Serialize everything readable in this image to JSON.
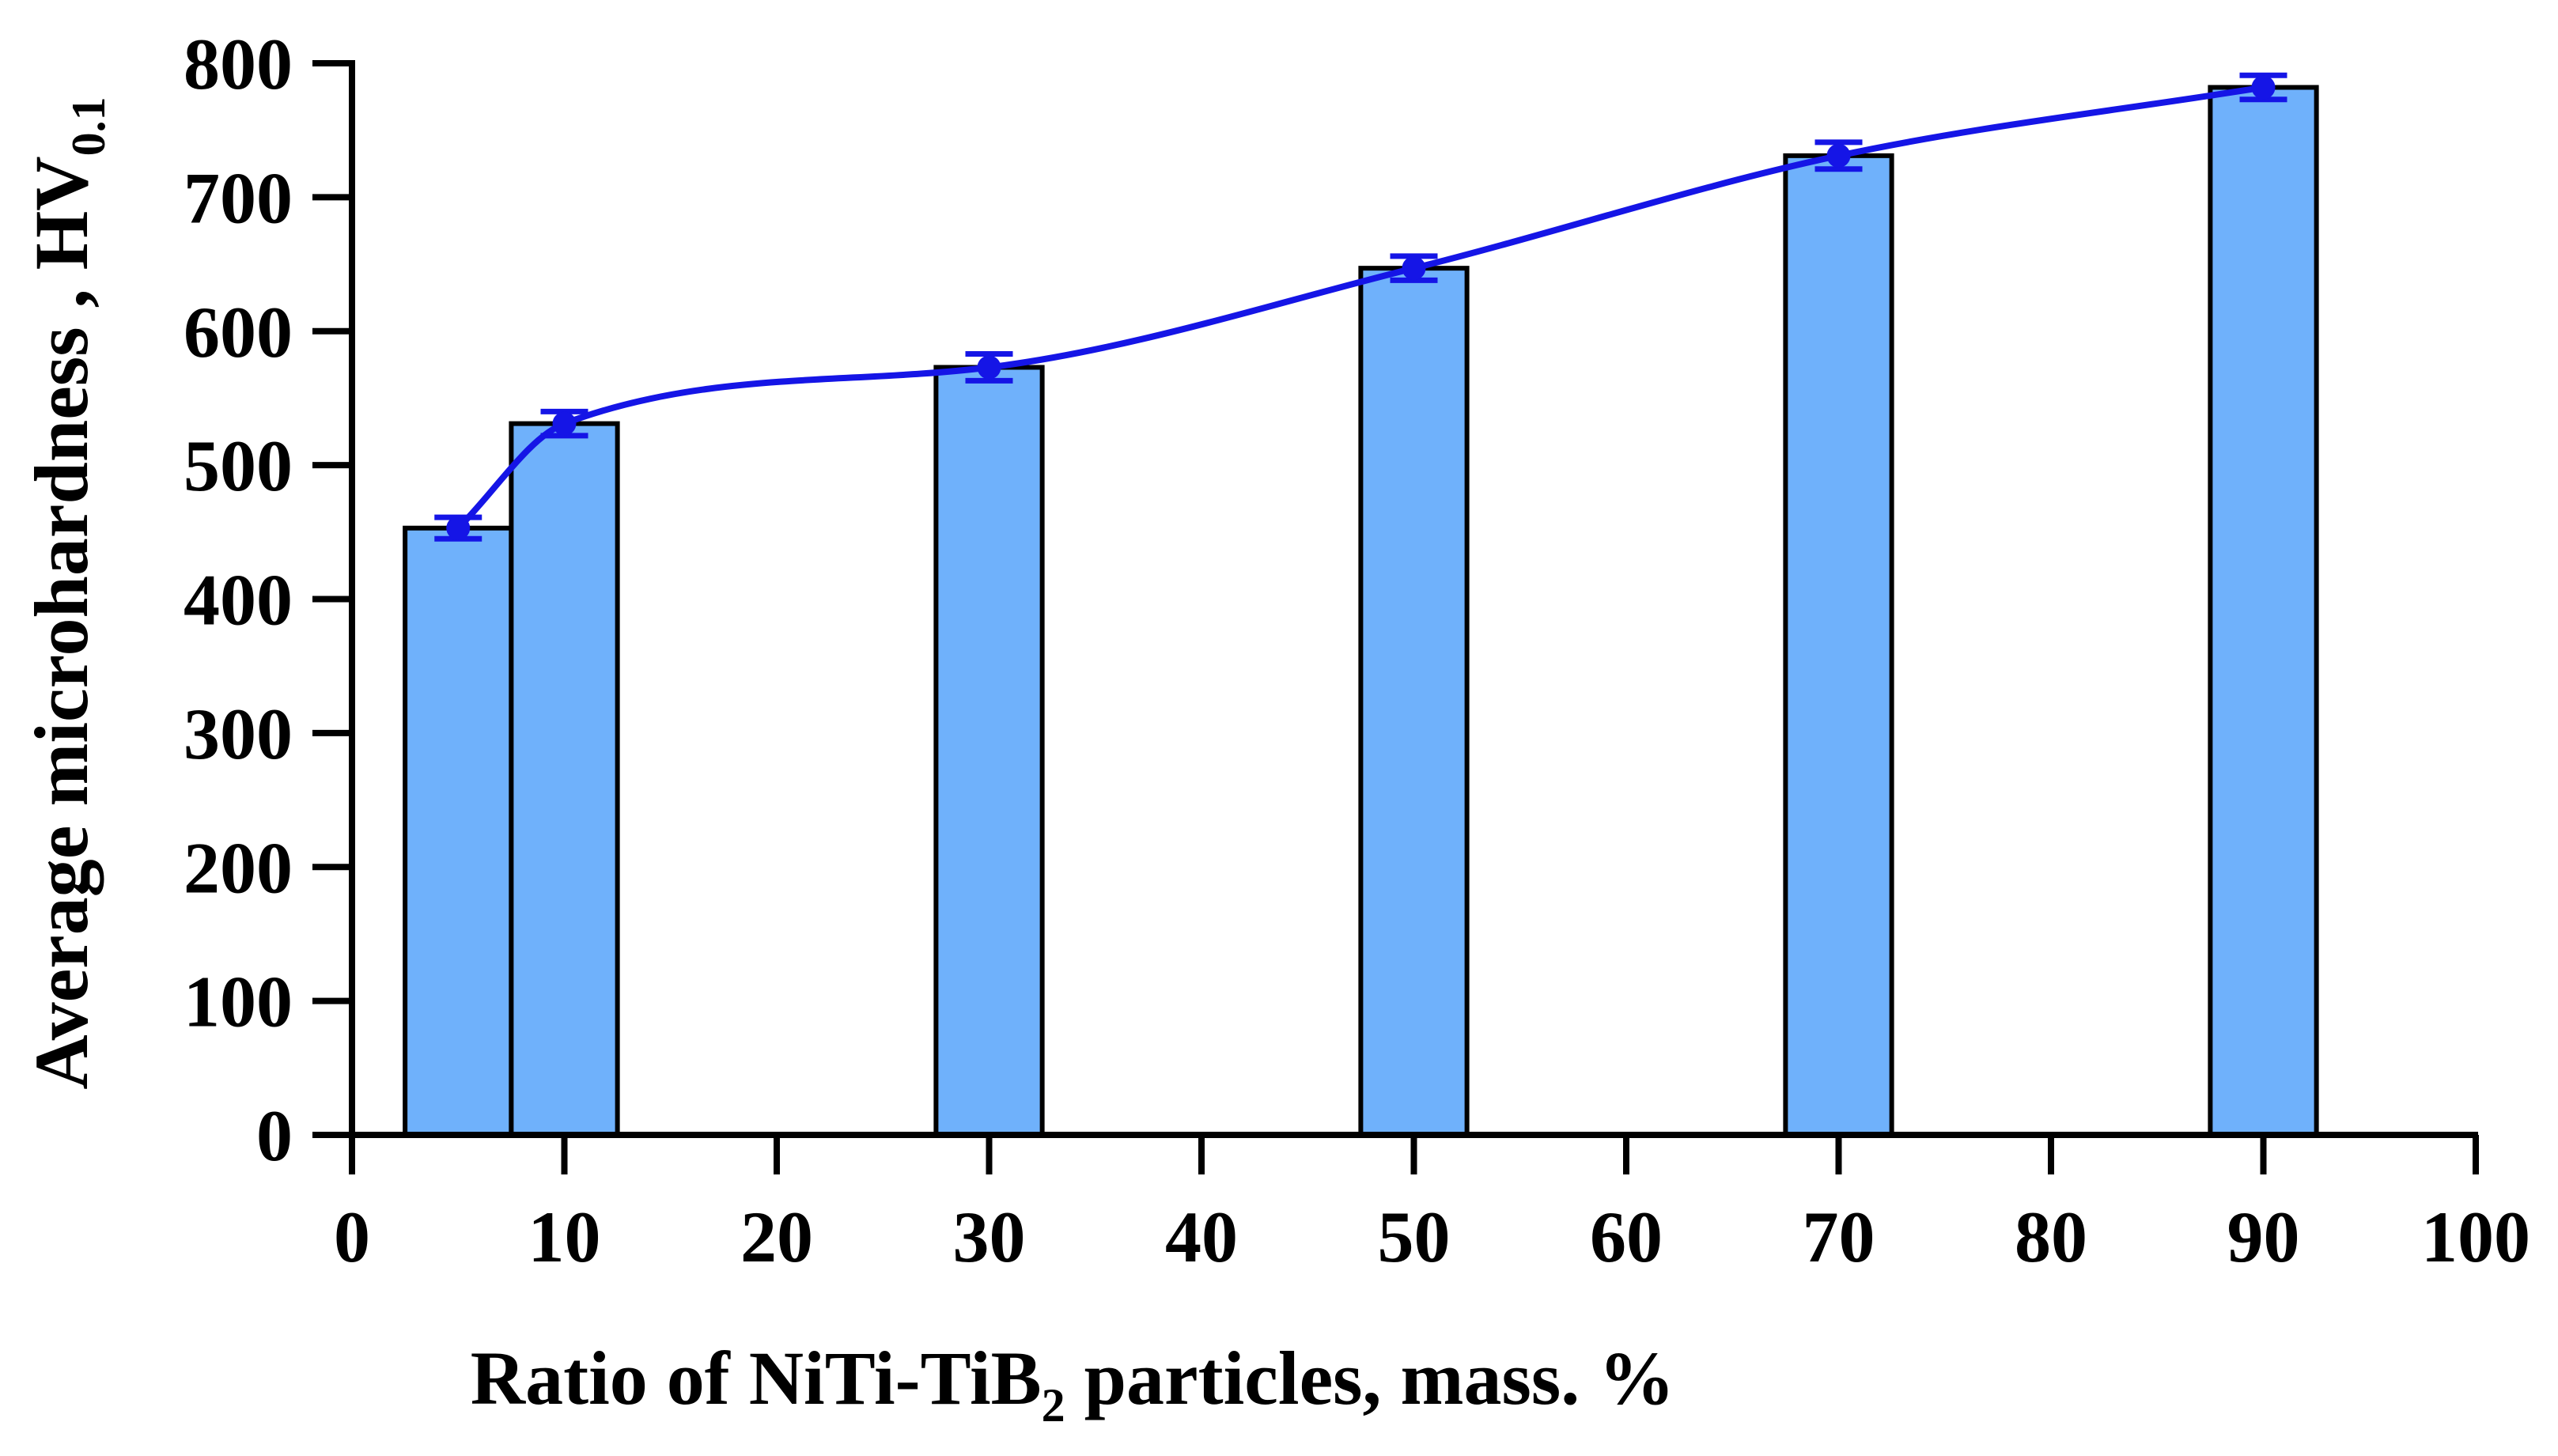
{
  "chart_data": {
    "type": "bar",
    "title": "",
    "x": [
      5,
      10,
      30,
      50,
      70,
      90
    ],
    "values": [
      453,
      531,
      573,
      647,
      731,
      782
    ],
    "errors": [
      8,
      9,
      10,
      9,
      10,
      9
    ],
    "xlabel": {
      "main": "Ratio of NiTi-TiB",
      "subscript": "2",
      "suffix": " particles, mass. %"
    },
    "ylabel": {
      "main": "Average microhardness , HV",
      "subscript": "0.1"
    },
    "xlim": [
      0,
      100
    ],
    "ylim": [
      0,
      800
    ],
    "xticks": [
      0,
      10,
      20,
      30,
      40,
      50,
      60,
      70,
      80,
      90,
      100
    ],
    "yticks": [
      0,
      100,
      200,
      300,
      400,
      500,
      600,
      700,
      800
    ],
    "xtick_labels": [
      "0",
      "10",
      "20",
      "30",
      "40",
      "50",
      "60",
      "70",
      "80",
      "90",
      "100"
    ],
    "ytick_labels": [
      "0",
      "100",
      "200",
      "300",
      "400",
      "500",
      "600",
      "700",
      "800"
    ],
    "grid": false,
    "trend_line": "smooth curve through bar means",
    "colors": {
      "bar_fill": "#6fb1fb",
      "bar_stroke": "#000000",
      "line": "#1515e6",
      "axis": "#000000"
    }
  }
}
